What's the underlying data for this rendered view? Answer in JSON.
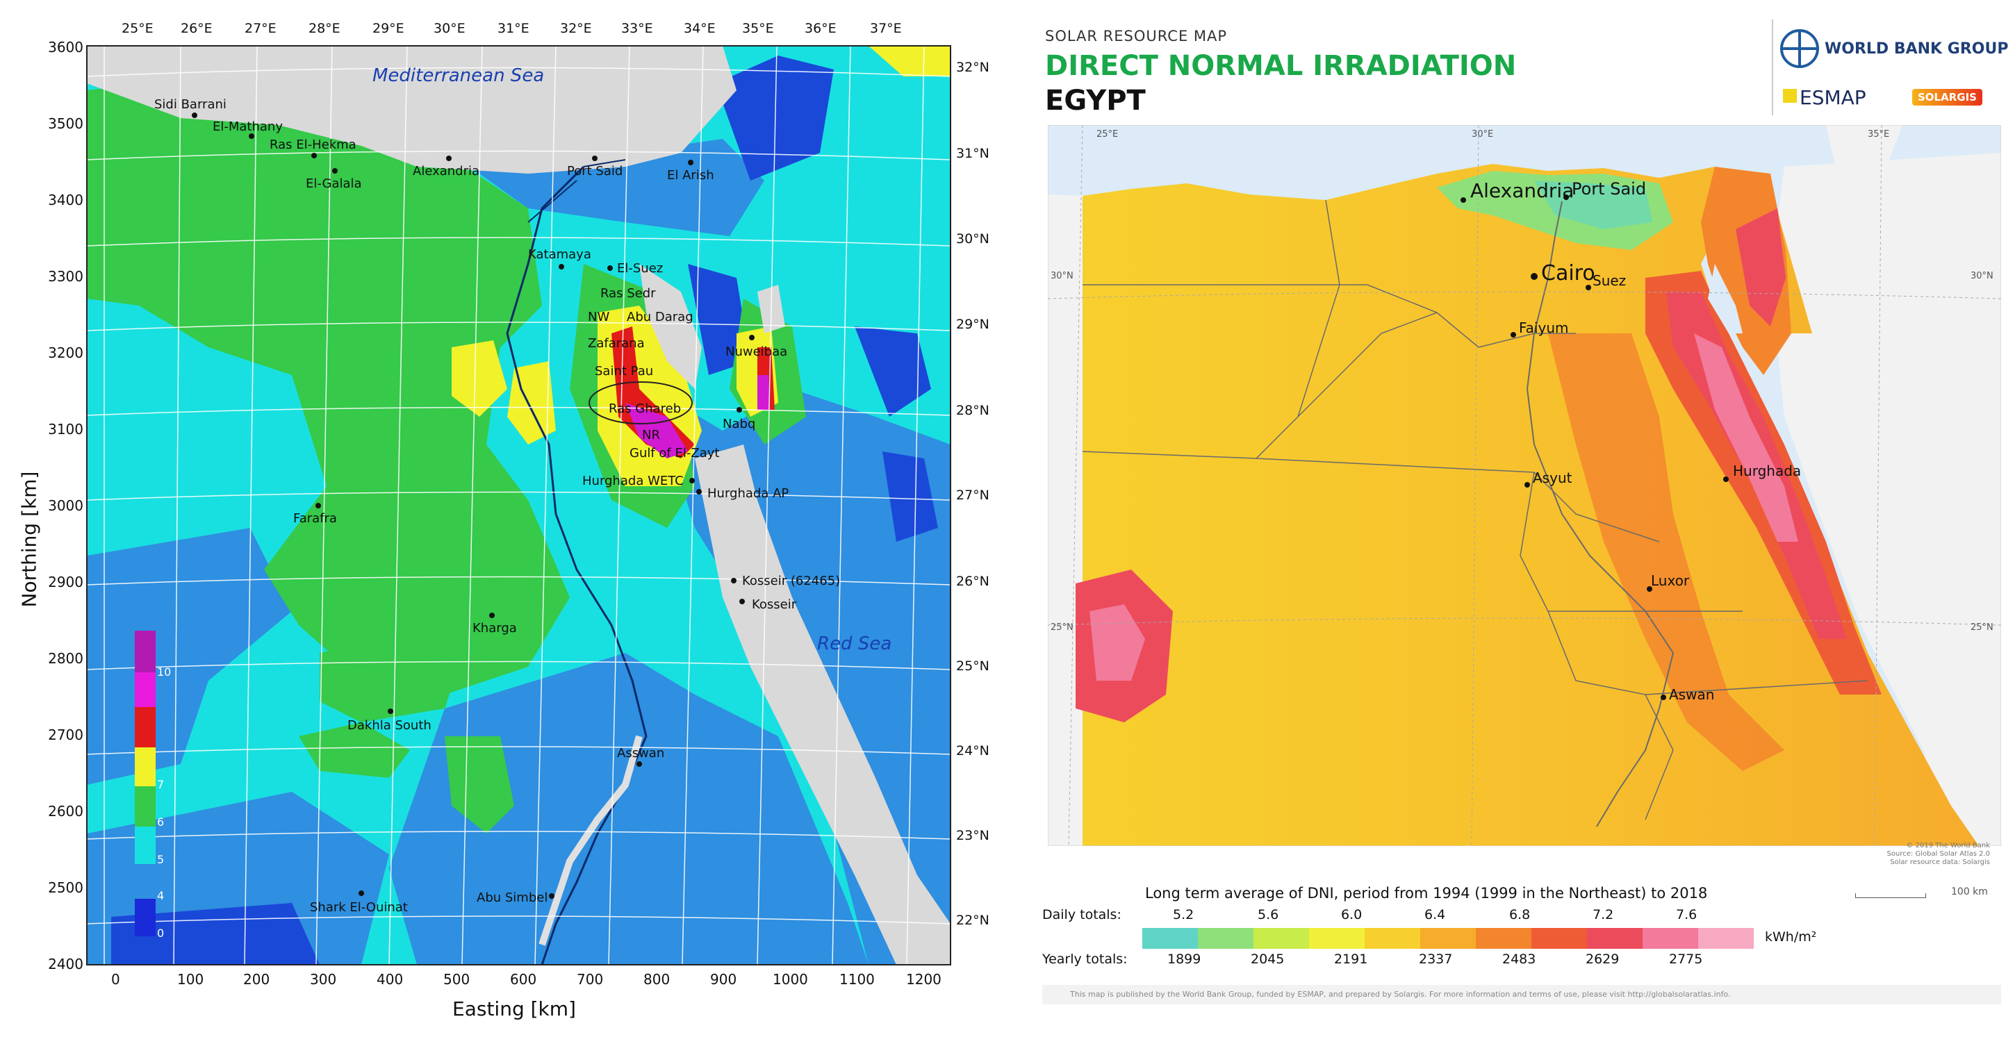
{
  "left_map": {
    "ylabel": "Northing [km]",
    "xlabel": "Easting [km]",
    "x_ticks": [
      "0",
      "100",
      "200",
      "300",
      "400",
      "500",
      "600",
      "700",
      "800",
      "900",
      "1000",
      "1100",
      "1200"
    ],
    "y_ticks": [
      "3600",
      "3500",
      "3400",
      "3300",
      "3200",
      "3100",
      "3000",
      "2900",
      "2800",
      "2700",
      "2600",
      "2500",
      "2400"
    ],
    "top_lon": [
      "25°E",
      "26°E",
      "27°E",
      "28°E",
      "29°E",
      "30°E",
      "31°E",
      "32°E",
      "33°E",
      "34°E",
      "35°E",
      "36°E",
      "37°E"
    ],
    "right_lat": [
      "32°N",
      "31°N",
      "30°N",
      "29°N",
      "28°N",
      "27°N",
      "26°N",
      "25°N",
      "24°N",
      "23°N",
      "22°N"
    ],
    "seas": {
      "med": "Mediterranean Sea",
      "red": "Red Sea"
    },
    "places": [
      "Sidi Barrani",
      "El-Mathany",
      "Ras El-Hekma",
      "El-Galala",
      "Alexandria",
      "Port Said",
      "El Arish",
      "Katamaya",
      "El-Suez",
      "Ras Sedr",
      "Abu Darag",
      "NW",
      "Zafarana",
      "Saint Pau",
      "Nuweibaa",
      "Ras Ghareb",
      "NR",
      "Nabq",
      "Gulf of El-Zayt",
      "Hurghada WETC",
      "Hurghada AP",
      "Farafra",
      "Kosseir (62465)",
      "Kosseir",
      "Kharga",
      "Dakhla South",
      "Asswan",
      "Shark El-Ouinat",
      "Abu Simbel"
    ],
    "legend_values": [
      "10",
      "7",
      "6",
      "5",
      "4",
      "0"
    ]
  },
  "right_map": {
    "header_small": "SOLAR RESOURCE MAP",
    "header_title": "DIRECT NORMAL IRRADIATION",
    "header_country": "EGYPT",
    "logo_wb": "WORLD BANK GROUP",
    "logo_esmap": "ESMAP",
    "logo_solargis": "SOLARGIS",
    "lon_labels": [
      "25°E",
      "30°E",
      "35°E"
    ],
    "lat_labels_left": [
      "30°N",
      "25°N"
    ],
    "lat_labels_right": [
      "30°N",
      "25°N"
    ],
    "cities": [
      "Alexandria",
      "Port Said",
      "Cairo",
      "Suez",
      "Faiyum",
      "Asyut",
      "Hurghada",
      "Luxor",
      "Aswan"
    ],
    "copyright_lines": [
      "© 2019 The World Bank",
      "Source: Global Solar Atlas 2.0",
      "Solar resource data: Solargis"
    ],
    "scale_label": "100 km",
    "legend": {
      "title": "Long term average of DNI, period from 1994 (1999 in the Northeast) to 2018",
      "daily_label": "Daily totals:",
      "daily_values": [
        "5.2",
        "5.6",
        "6.0",
        "6.4",
        "6.8",
        "7.2",
        "7.6"
      ],
      "yearly_label": "Yearly totals:",
      "yearly_values": [
        "1899",
        "2045",
        "2191",
        "2337",
        "2483",
        "2629",
        "2775"
      ],
      "unit": "kWh/m²",
      "colors": [
        "#5fd3c6",
        "#8fe07a",
        "#c8ec4a",
        "#f2ef3a",
        "#f7cf2e",
        "#f6ac2c",
        "#f3852d",
        "#ee5c36",
        "#ec4b5c",
        "#f27a9a",
        "#f7a9c1"
      ]
    },
    "footer": "This map is published by the World Bank Group, funded by ESMAP, and prepared by Solargis. For more information and terms of use, please visit http://globalsolaratlas.info."
  }
}
